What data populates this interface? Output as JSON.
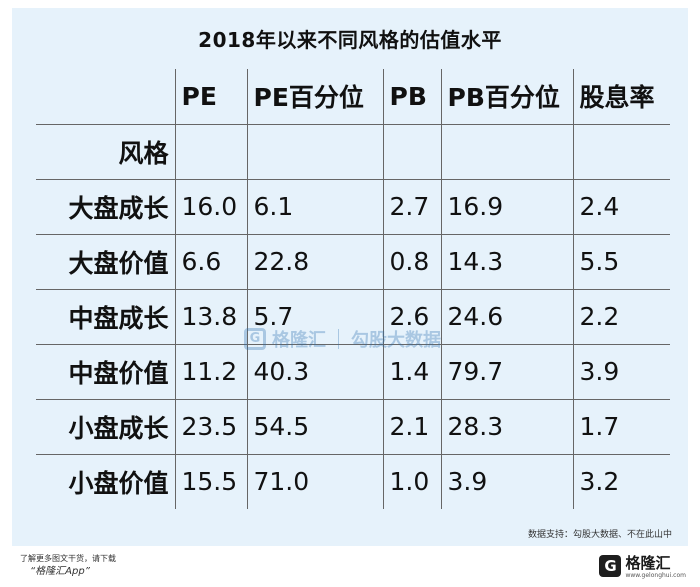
{
  "title": "2018年以来不同风格的估值水平",
  "table": {
    "headers": [
      "PE",
      "PE百分位",
      "PB",
      "PB百分位",
      "股息率"
    ],
    "style_label": "风格",
    "rows": [
      {
        "style": "大盘成长",
        "pe": "16.0",
        "pe_pct": "6.1",
        "pb": "2.7",
        "pb_pct": "16.9",
        "dividend": "2.4"
      },
      {
        "style": "大盘价值",
        "pe": "6.6",
        "pe_pct": "22.8",
        "pb": "0.8",
        "pb_pct": "14.3",
        "dividend": "5.5"
      },
      {
        "style": "中盘成长",
        "pe": "13.8",
        "pe_pct": "5.7",
        "pb": "2.6",
        "pb_pct": "24.6",
        "dividend": "2.2"
      },
      {
        "style": "中盘价值",
        "pe": "11.2",
        "pe_pct": "40.3",
        "pb": "1.4",
        "pb_pct": "79.7",
        "dividend": "3.9"
      },
      {
        "style": "小盘成长",
        "pe": "23.5",
        "pe_pct": "54.5",
        "pb": "2.1",
        "pb_pct": "28.3",
        "dividend": "1.7"
      },
      {
        "style": "小盘价值",
        "pe": "15.5",
        "pe_pct": "71.0",
        "pb": "1.0",
        "pb_pct": "3.9",
        "dividend": "3.2"
      }
    ]
  },
  "source": "数据支持：勾股大数据、不在此山中",
  "watermark": {
    "logo": "G",
    "brand": "格隆汇",
    "partner": "勾股大数据"
  },
  "footer": {
    "more_text": "了解更多图文干货，请下载",
    "app_name": "“格隆汇App”",
    "logo_letter": "G",
    "brand": "格隆汇",
    "url": "www.gelonghui.com"
  },
  "colors": {
    "card_bg": "#e6f2fb",
    "border": "#666666",
    "watermark": "#2a6fb0"
  }
}
